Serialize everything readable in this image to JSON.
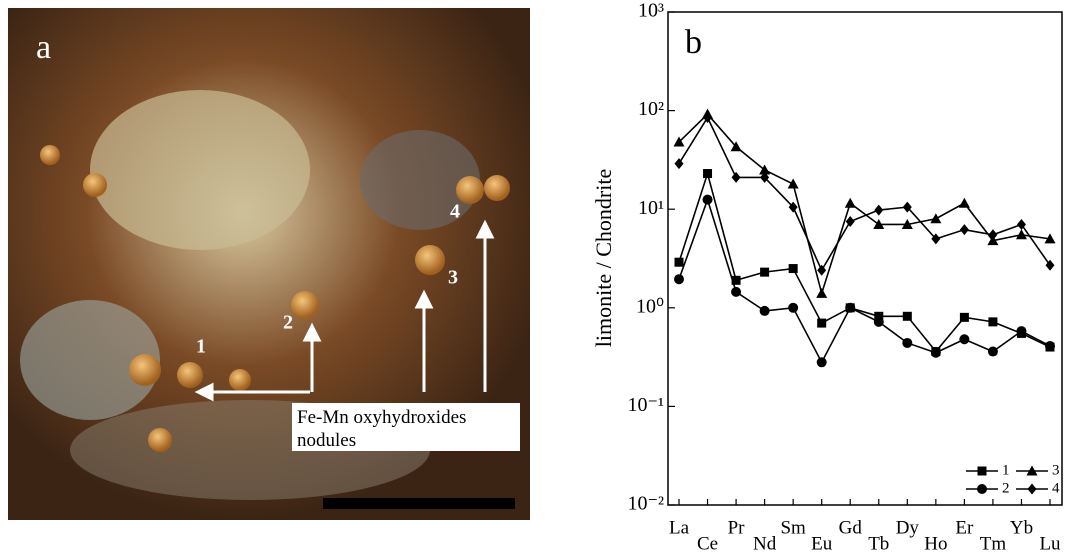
{
  "photo": {
    "panel_label": "a",
    "nodule_labels": [
      "1",
      "2",
      "3",
      "4"
    ],
    "annotation": [
      "Fe-Mn oxyhydroxides",
      "nodules"
    ]
  },
  "chart_data": {
    "type": "line",
    "panel_label": "b",
    "y_label": "limonite / Chondrite",
    "categories": [
      "La",
      "Ce",
      "Pr",
      "Nd",
      "Sm",
      "Eu",
      "Gd",
      "Tb",
      "Dy",
      "Ho",
      "Er",
      "Tm",
      "Yb",
      "Lu"
    ],
    "y_scale": "log",
    "ylim": [
      0.01,
      1000
    ],
    "yticks": [
      {
        "value": 0.01,
        "label": "10⁻²"
      },
      {
        "value": 0.1,
        "label": "10⁻¹"
      },
      {
        "value": 1,
        "label": "10⁰"
      },
      {
        "value": 10,
        "label": "10¹"
      },
      {
        "value": 100,
        "label": "10²"
      },
      {
        "value": 1000,
        "label": "10³"
      }
    ],
    "legend_position": "lower right",
    "series": [
      {
        "name": "1",
        "color": "#000000",
        "marker": "square",
        "values": [
          2.9,
          23,
          1.9,
          2.3,
          2.5,
          0.7,
          1.0,
          0.82,
          0.82,
          0.36,
          0.8,
          0.72,
          0.55,
          0.4
        ]
      },
      {
        "name": "2",
        "color": "#000000",
        "marker": "circle",
        "values": [
          1.95,
          12.5,
          1.45,
          0.93,
          1.0,
          0.28,
          1.0,
          0.72,
          0.44,
          0.35,
          0.48,
          0.36,
          0.58,
          0.41
        ]
      },
      {
        "name": "3",
        "color": "#000000",
        "marker": "triangle",
        "values": [
          48,
          92,
          43,
          25,
          18,
          1.4,
          11.5,
          7,
          7,
          8,
          11.5,
          4.8,
          5.5,
          5
        ]
      },
      {
        "name": "4",
        "color": "#000000",
        "marker": "diamond",
        "values": [
          29,
          85,
          21,
          21,
          10.5,
          2.4,
          7.5,
          9.8,
          10.5,
          5,
          6.2,
          5.5,
          7,
          2.7
        ]
      }
    ]
  }
}
